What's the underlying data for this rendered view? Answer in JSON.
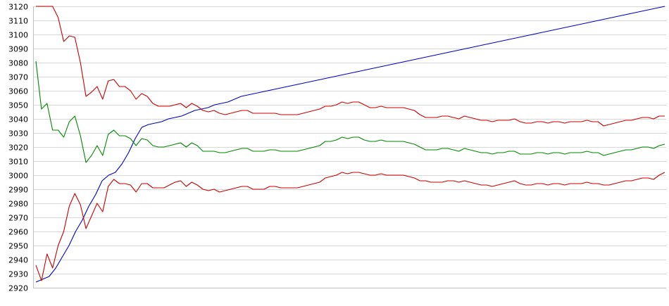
{
  "chart_data": {
    "type": "line",
    "title": "",
    "xlabel": "",
    "ylabel": "",
    "ylim": [
      2920,
      3120
    ],
    "ytick_step": 10,
    "grid": true,
    "legend": "none",
    "series": [
      {
        "color": "#0000cc",
        "values": [
          2924,
          2926,
          2928,
          2934,
          2942,
          2950,
          2960,
          2968,
          2978,
          2986,
          2996,
          3000,
          3002,
          3008,
          3016,
          3026,
          3034,
          3036,
          3037,
          3038,
          3040,
          3041,
          3042,
          3044,
          3046,
          3047,
          3048,
          3050,
          3051,
          3052,
          3054,
          3056,
          3057,
          3058,
          3059,
          3060,
          3061,
          3062,
          3063,
          3064,
          3065,
          3066,
          3067,
          3068,
          3069,
          3070,
          3071,
          3072,
          3073,
          3074,
          3075,
          3076,
          3077,
          3078,
          3079,
          3080,
          3081,
          3082,
          3083,
          3084,
          3085,
          3086,
          3087,
          3088,
          3089,
          3090,
          3091,
          3092,
          3093,
          3094,
          3095,
          3096,
          3097,
          3098,
          3099,
          3100,
          3101,
          3102,
          3103,
          3104,
          3105,
          3106,
          3107,
          3108,
          3109,
          3110,
          3111,
          3112,
          3113,
          3114,
          3115,
          3116,
          3117,
          3118,
          3119,
          3120
        ]
      },
      {
        "color": "#cc0000",
        "values": [
          3120,
          3120,
          3120,
          3120,
          3112,
          3095,
          3099,
          3098,
          3080,
          3056,
          3059,
          3063,
          3054,
          3067,
          3068,
          3063,
          3063,
          3060,
          3054,
          3058,
          3056,
          3051,
          3049,
          3049,
          3049,
          3050,
          3051,
          3048,
          3051,
          3049,
          3046,
          3045,
          3046,
          3044,
          3043,
          3044,
          3045,
          3046,
          3046,
          3044,
          3044,
          3044,
          3044,
          3044,
          3043,
          3043,
          3043,
          3043,
          3044,
          3045,
          3046,
          3047,
          3049,
          3049,
          3050,
          3052,
          3051,
          3052,
          3052,
          3050,
          3048,
          3048,
          3049,
          3048,
          3048,
          3048,
          3048,
          3047,
          3046,
          3043,
          3041,
          3041,
          3041,
          3042,
          3042,
          3041,
          3040,
          3042,
          3041,
          3040,
          3039,
          3039,
          3038,
          3039,
          3039,
          3039,
          3040,
          3038,
          3037,
          3037,
          3038,
          3038,
          3037,
          3038,
          3038,
          3037,
          3038,
          3038,
          3038,
          3039,
          3038,
          3038,
          3035,
          3036,
          3037,
          3038,
          3039,
          3039,
          3040,
          3041,
          3041,
          3040,
          3042,
          3042
        ]
      },
      {
        "color": "#008800",
        "values": [
          3081,
          3047,
          3051,
          3032,
          3032,
          3027,
          3038,
          3042,
          3028,
          3009,
          3014,
          3021,
          3014,
          3029,
          3032,
          3028,
          3028,
          3026,
          3021,
          3026,
          3025,
          3021,
          3020,
          3020,
          3021,
          3022,
          3023,
          3020,
          3023,
          3021,
          3017,
          3017,
          3017,
          3016,
          3016,
          3017,
          3018,
          3019,
          3019,
          3017,
          3017,
          3017,
          3018,
          3018,
          3017,
          3017,
          3017,
          3017,
          3018,
          3019,
          3020,
          3021,
          3024,
          3024,
          3025,
          3027,
          3026,
          3027,
          3027,
          3025,
          3024,
          3024,
          3025,
          3024,
          3024,
          3024,
          3024,
          3023,
          3022,
          3020,
          3018,
          3018,
          3018,
          3019,
          3019,
          3018,
          3017,
          3019,
          3018,
          3017,
          3016,
          3016,
          3015,
          3016,
          3016,
          3017,
          3017,
          3015,
          3015,
          3015,
          3016,
          3016,
          3015,
          3016,
          3016,
          3015,
          3016,
          3016,
          3016,
          3017,
          3016,
          3016,
          3014,
          3015,
          3016,
          3017,
          3018,
          3018,
          3019,
          3020,
          3020,
          3019,
          3021,
          3022
        ]
      },
      {
        "color": "#cc0000",
        "values": [
          2936,
          2925,
          2944,
          2934,
          2950,
          2960,
          2978,
          2987,
          2979,
          2962,
          2971,
          2980,
          2974,
          2992,
          2997,
          2994,
          2994,
          2993,
          2988,
          2994,
          2994,
          2991,
          2991,
          2991,
          2993,
          2995,
          2996,
          2992,
          2995,
          2993,
          2990,
          2989,
          2990,
          2988,
          2989,
          2990,
          2991,
          2992,
          2992,
          2990,
          2990,
          2990,
          2992,
          2992,
          2991,
          2991,
          2991,
          2991,
          2992,
          2993,
          2994,
          2995,
          2998,
          2999,
          3000,
          3002,
          3001,
          3002,
          3002,
          3001,
          3000,
          3000,
          3001,
          3000,
          3000,
          3000,
          3000,
          2999,
          2998,
          2996,
          2996,
          2995,
          2995,
          2995,
          2996,
          2996,
          2995,
          2996,
          2995,
          2994,
          2993,
          2993,
          2992,
          2993,
          2994,
          2995,
          2996,
          2994,
          2993,
          2993,
          2994,
          2994,
          2993,
          2994,
          2994,
          2993,
          2994,
          2994,
          2994,
          2995,
          2994,
          2994,
          2993,
          2993,
          2994,
          2995,
          2996,
          2996,
          2997,
          2998,
          2998,
          2997,
          3000,
          3002
        ]
      }
    ]
  }
}
